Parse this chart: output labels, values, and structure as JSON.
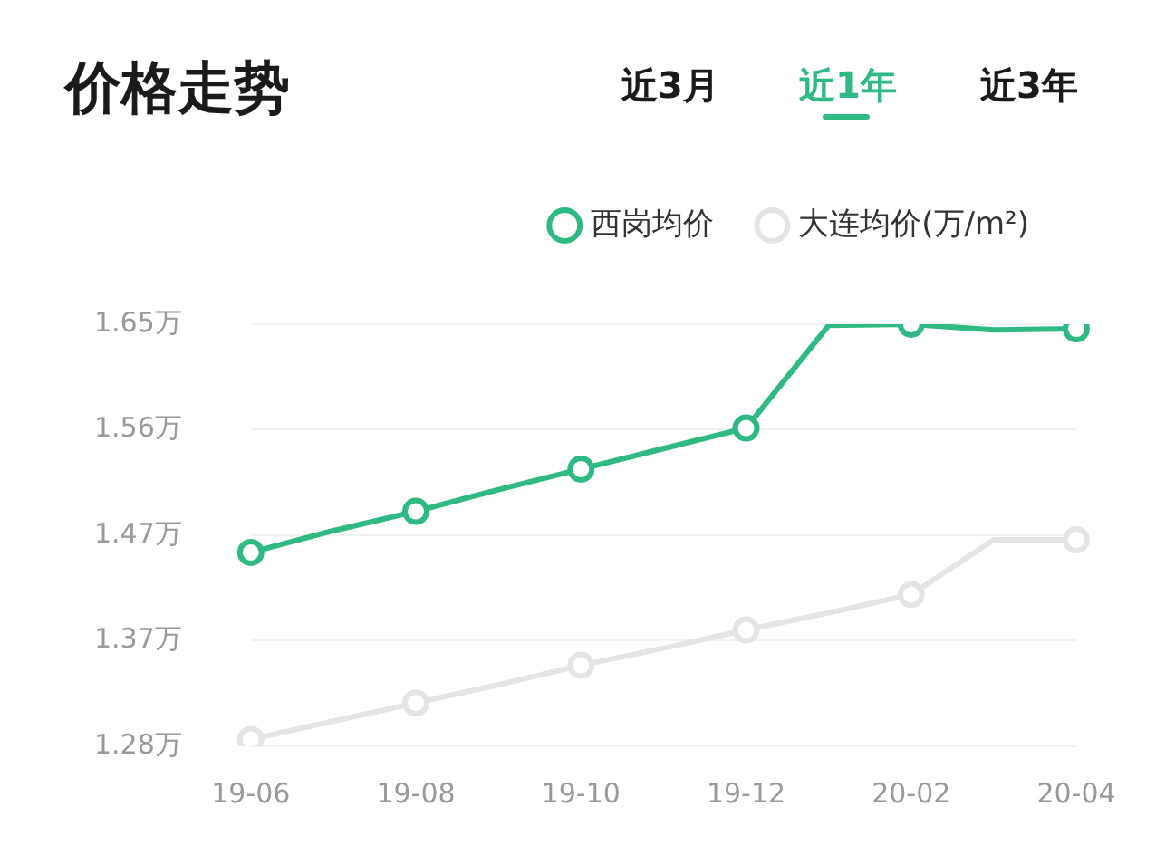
{
  "chart_data": {
    "type": "line",
    "title": "价格走势",
    "annotations": [
      "近3月",
      "近1年",
      "近3年"
    ],
    "categories": [
      "19-06",
      null,
      "19-08",
      null,
      "19-10",
      null,
      "19-12",
      null,
      "20-02",
      null,
      "20-04"
    ],
    "series": [
      {
        "name": "西岗均价",
        "color": "#2fb983",
        "values": [
          1.45,
          1.469,
          1.486,
          1.505,
          1.523,
          1.541,
          1.559,
          1.649,
          1.65,
          1.645,
          1.646
        ]
      },
      {
        "name": "大连均价(万/m²)",
        "color": "#e4e4e4",
        "values": [
          1.286,
          1.302,
          1.318,
          1.334,
          1.351,
          1.366,
          1.382,
          1.397,
          1.413,
          1.461,
          1.461
        ]
      }
    ],
    "ylim": [
      1.28,
      1.65
    ],
    "yticks": [
      {
        "value": 1.28,
        "label": "1.28万"
      },
      {
        "value": 1.3725,
        "label": "1.37万"
      },
      {
        "value": 1.465,
        "label": "1.47万"
      },
      {
        "value": 1.5575,
        "label": "1.56万"
      },
      {
        "value": 1.65,
        "label": "1.65万"
      }
    ],
    "grid": "y",
    "legend": "top right",
    "marker": "circle",
    "line_style": "solid"
  }
}
